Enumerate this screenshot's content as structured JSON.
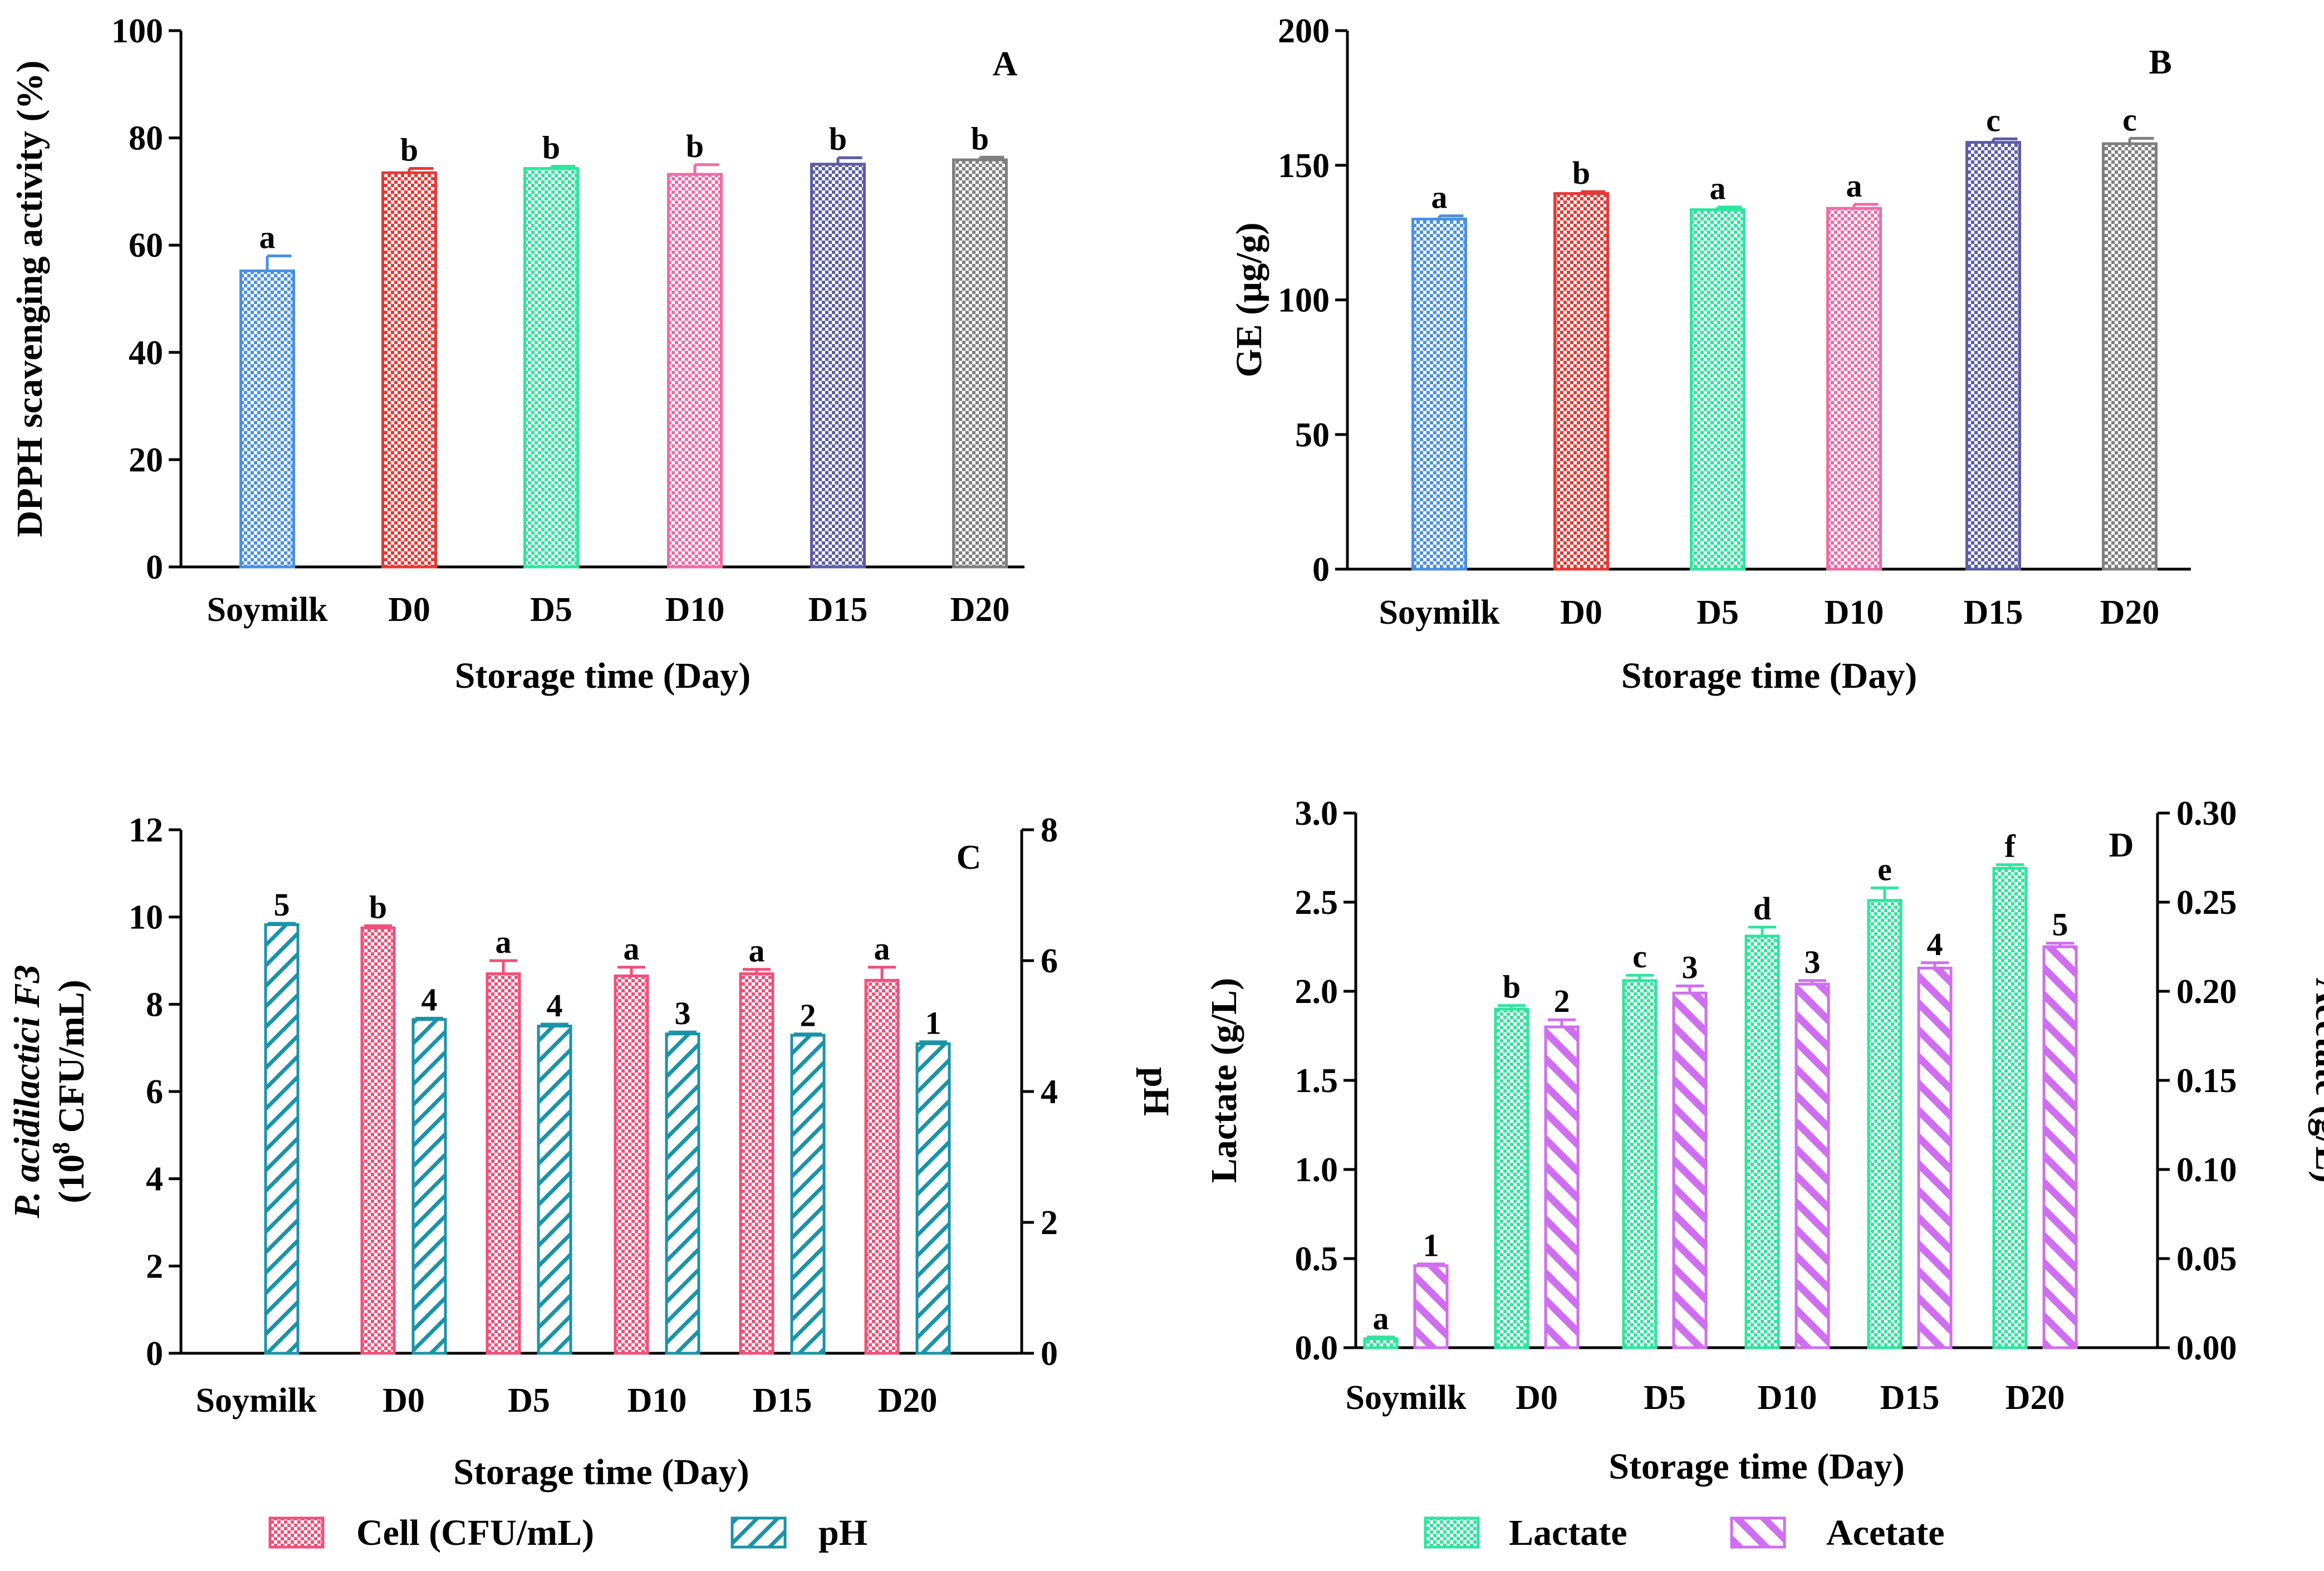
{
  "chart_data": [
    {
      "panel": "A",
      "type": "bar",
      "title": "",
      "xlabel": "Storage time (Day)",
      "ylabel": "DPPH scavenging activity (%)",
      "ylim": [
        0,
        100
      ],
      "yticks": [
        "0",
        "20",
        "40",
        "60",
        "80",
        "100"
      ],
      "categories": [
        "Soymilk",
        "D0",
        "D5",
        "D10",
        "D15",
        "D20"
      ],
      "series": [
        {
          "name": "DPPH scavenging activity",
          "values": [
            55.2,
            73.5,
            74.3,
            73.2,
            75.1,
            75.9
          ],
          "errors": [
            2.8,
            0.8,
            0.4,
            1.8,
            1.2,
            0.5
          ],
          "labels": [
            "a",
            "b",
            "b",
            "b",
            "b",
            "b"
          ],
          "colors": [
            "#4a90e2",
            "#e53935",
            "#2ee59d",
            "#f06aa6",
            "#5c5ca8",
            "#7f7f7f"
          ]
        }
      ]
    },
    {
      "panel": "B",
      "type": "bar",
      "title": "",
      "xlabel": "Storage time (Day)",
      "ylabel": "GE (µg/g)",
      "ylim": [
        0,
        200
      ],
      "yticks": [
        "0",
        "50",
        "100",
        "150",
        "200"
      ],
      "categories": [
        "Soymilk",
        "D0",
        "D5",
        "D10",
        "D15",
        "D20"
      ],
      "series": [
        {
          "name": "GE",
          "values": [
            130,
            139.5,
            133.5,
            134,
            158.5,
            158
          ],
          "errors": [
            1.2,
            0.7,
            1.0,
            1.5,
            1.3,
            2.0
          ],
          "labels": [
            "a",
            "b",
            "a",
            "a",
            "c",
            "c"
          ],
          "colors": [
            "#4a90e2",
            "#e53935",
            "#2ee59d",
            "#f06aa6",
            "#5c5ca8",
            "#7f7f7f"
          ]
        }
      ]
    },
    {
      "panel": "C",
      "type": "bar",
      "title": "",
      "xlabel": "Storage time (Day)",
      "ylabel_line1": "P. acidilactici F3",
      "ylabel_line2_prefix": "(10",
      "ylabel_line2_sup": "8",
      "ylabel_line2_suffix": " CFU/mL)",
      "ylabel_right": "pH",
      "ylim": [
        0,
        12
      ],
      "yticks": [
        "0",
        "2",
        "4",
        "6",
        "8",
        "10",
        "12"
      ],
      "ylim_right": [
        0,
        8
      ],
      "yticks_right": [
        "0",
        "2",
        "4",
        "6",
        "8"
      ],
      "categories": [
        "Soymilk",
        "D0",
        "D5",
        "D10",
        "D15",
        "D20"
      ],
      "series": [
        {
          "name": "Cell (CFU/mL)",
          "axis": "left",
          "values": [
            null,
            9.75,
            8.7,
            8.65,
            8.7,
            8.55
          ],
          "errors": [
            null,
            0.05,
            0.3,
            0.2,
            0.1,
            0.3
          ],
          "labels": [
            "",
            "b",
            "a",
            "a",
            "a",
            "a"
          ],
          "color": "#f0507a",
          "pattern": "checker"
        },
        {
          "name": "pH",
          "axis": "right",
          "values": [
            6.55,
            5.1,
            5.0,
            4.88,
            4.86,
            4.73
          ],
          "errors": [
            0.02,
            0.02,
            0.03,
            0.03,
            0.02,
            0.03
          ],
          "labels": [
            "5",
            "4",
            "4",
            "3",
            "2",
            "1"
          ],
          "color": "#1a93a8",
          "pattern": "hatch"
        }
      ],
      "legend": [
        "Cell (CFU/mL)",
        "pH"
      ]
    },
    {
      "panel": "D",
      "type": "bar",
      "title": "",
      "xlabel": "Storage time (Day)",
      "ylabel": "Lactate (g/L)",
      "ylabel_right": "Acetate (g/L)",
      "ylim": [
        0,
        3.0
      ],
      "yticks": [
        "0.0",
        "0.5",
        "1.0",
        "1.5",
        "2.0",
        "2.5",
        "3.0"
      ],
      "ylim_right": [
        0,
        0.3
      ],
      "yticks_right": [
        "0.00",
        "0.05",
        "0.10",
        "0.15",
        "0.20",
        "0.25",
        "0.30"
      ],
      "categories": [
        "Soymilk",
        "D0",
        "D5",
        "D10",
        "D15",
        "D20"
      ],
      "series": [
        {
          "name": "Lactate",
          "axis": "left",
          "values": [
            0.05,
            1.9,
            2.06,
            2.31,
            2.51,
            2.69
          ],
          "errors": [
            0.01,
            0.02,
            0.03,
            0.05,
            0.07,
            0.02
          ],
          "labels": [
            "a",
            "b",
            "c",
            "d",
            "e",
            "f"
          ],
          "color": "#2ee59d",
          "pattern": "checker"
        },
        {
          "name": "Acetate",
          "axis": "right",
          "values": [
            0.046,
            0.18,
            0.199,
            0.204,
            0.213,
            0.225
          ],
          "errors": [
            0.001,
            0.004,
            0.004,
            0.002,
            0.003,
            0.002
          ],
          "labels": [
            "1",
            "2",
            "3",
            "3",
            "4",
            "5"
          ],
          "color": "#cf6ef0",
          "pattern": "diagonal"
        }
      ],
      "legend": [
        "Lactate",
        "Acetate"
      ]
    }
  ]
}
